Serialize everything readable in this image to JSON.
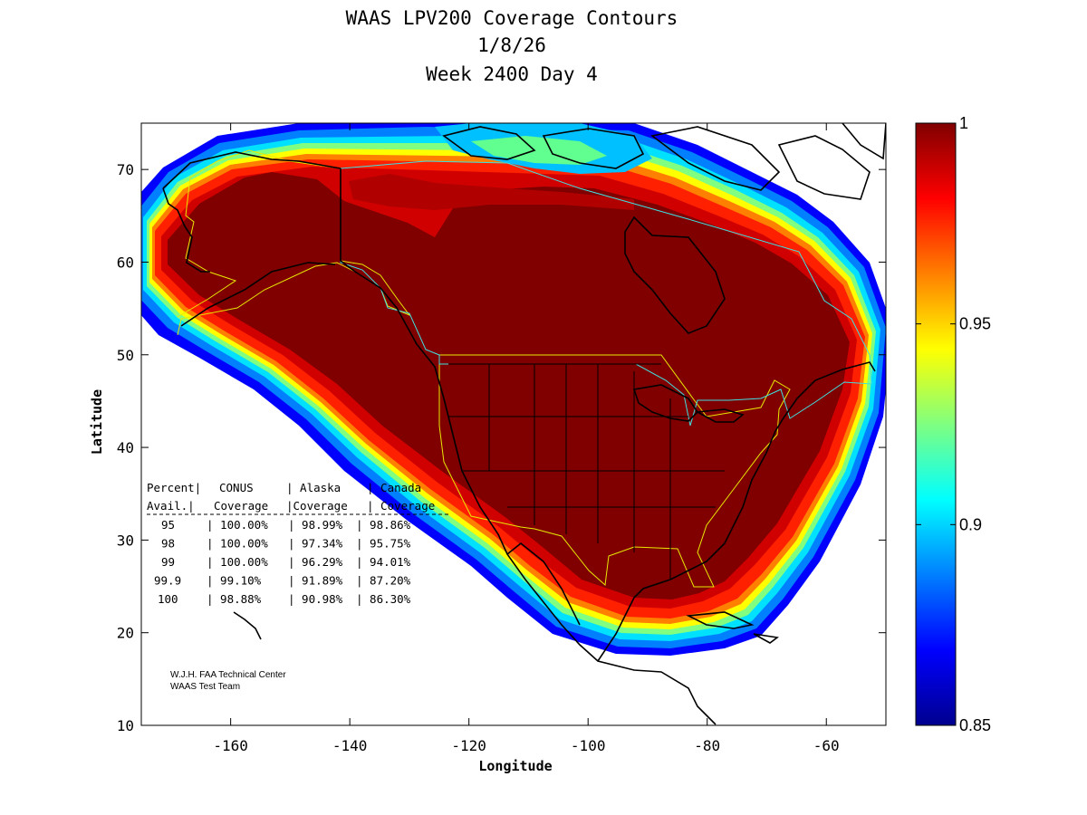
{
  "chart_data": {
    "type": "heatmap",
    "title_lines": [
      "WAAS LPV200 Coverage Contours",
      "1/8/26",
      "Week 2400 Day 4"
    ],
    "xlabel": "Longitude",
    "ylabel": "Latitude",
    "xlim": [
      -175,
      -50
    ],
    "ylim": [
      10,
      75
    ],
    "xticks": [
      -160,
      -140,
      -120,
      -100,
      -80,
      -60
    ],
    "yticks": [
      10,
      20,
      30,
      40,
      50,
      60,
      70
    ],
    "colorbar": {
      "min": 0.85,
      "max": 1,
      "ticks": [
        "1",
        "0.95",
        "0.9",
        "0.85"
      ],
      "colormap": "jet"
    },
    "coverage_table": {
      "header1": [
        "Percent|",
        "CONUS",
        "| Alaska",
        "| Canada"
      ],
      "header2": [
        " Avail.|",
        "Coverage",
        "|Coverage",
        "| Coverage"
      ],
      "rows": [
        [
          "95",
          "| 100.00%",
          "| 98.99%",
          "| 98.86%"
        ],
        [
          "98",
          "| 100.00%",
          "| 97.34%",
          "| 95.75%"
        ],
        [
          "99",
          "| 100.00%",
          "| 96.29%",
          "| 94.01%"
        ],
        [
          "99.9",
          "| 99.10%",
          "| 91.89%",
          "| 87.20%"
        ],
        [
          "100",
          "| 98.88%",
          "| 90.98%",
          "| 86.30%"
        ]
      ]
    },
    "credit": [
      "W.J.H. FAA Technical Center",
      "WAAS Test Team"
    ]
  },
  "colors": {
    "full_coverage": "#800000",
    "service_boundary_us": "#e8e800",
    "service_boundary_canada": "#40e0e0",
    "coastline": "#000000"
  }
}
